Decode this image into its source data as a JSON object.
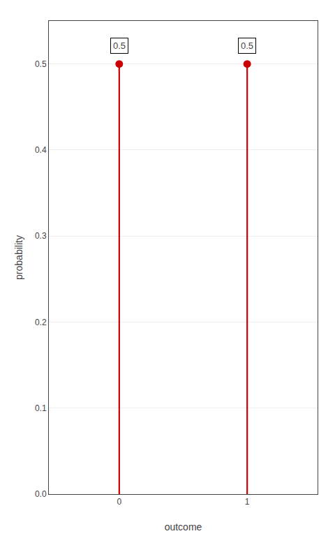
{
  "chart_data": {
    "type": "stem",
    "x": [
      0,
      1
    ],
    "values": [
      0.5,
      0.5
    ],
    "color": "#cc0000",
    "marker": "circle",
    "xlabel": "outcome",
    "ylabel": "probability",
    "xlim": [
      -0.55,
      1.55
    ],
    "ylim": [
      0.0,
      0.55
    ],
    "xticks": [
      0,
      1
    ],
    "yticks": [
      {
        "value": 0.0,
        "label": "0.0"
      },
      0.1,
      0.2,
      0.3,
      0.4,
      0.5
    ],
    "grid": true,
    "data_labels": true
  }
}
